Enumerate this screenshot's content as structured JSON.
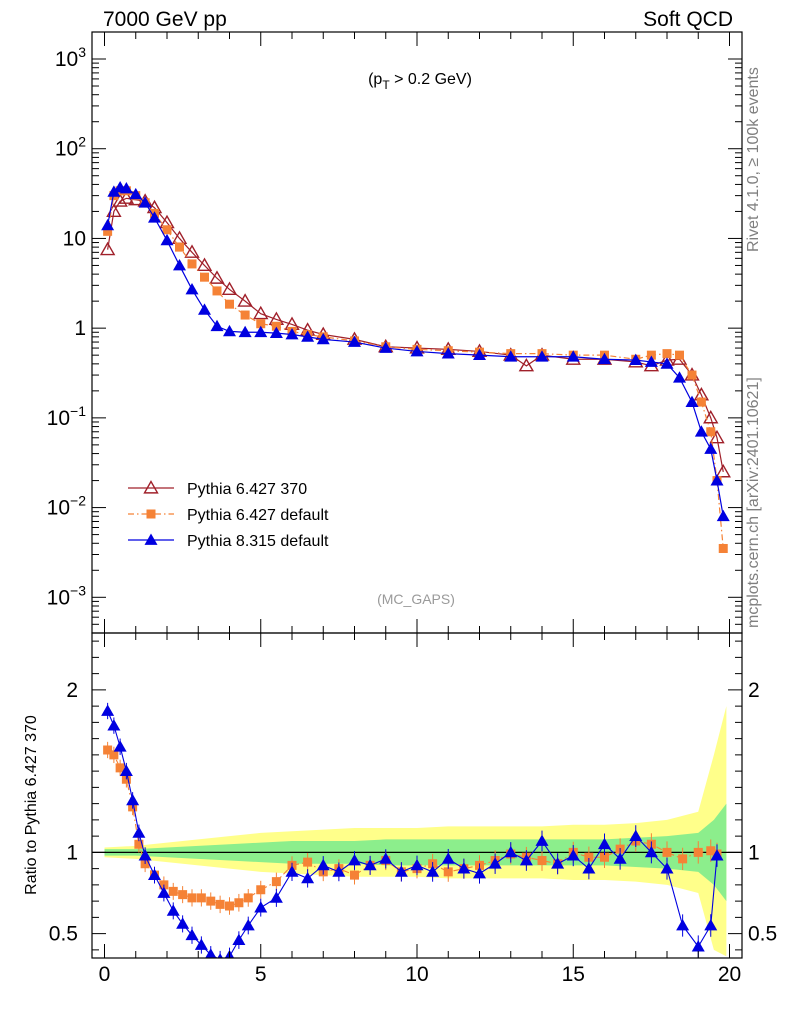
{
  "header": {
    "left": "7000 GeV pp",
    "right": "Soft QCD"
  },
  "side_labels": {
    "rivet": "Rivet 4.1.0, ≥ 100k events",
    "mcplots": "mcplots.cern.ch [arXiv:2401.10621]"
  },
  "chart_data": {
    "type": "line",
    "title": "(p_T > 0.2 GeV)",
    "watermark": "(MC_GAPS)",
    "xlabel": "",
    "ylabel_main": "",
    "ylabel_ratio": "Ratio to Pythia 6.427 370",
    "xlim": [
      -0.4,
      20.4
    ],
    "ylim_main": [
      0.0004,
      2000
    ],
    "yscale_main": "log",
    "ylim_ratio": [
      0.35,
      2.35
    ],
    "x_ticks": [
      0,
      5,
      10,
      15,
      20
    ],
    "y_ticks_main": [
      {
        "value": 0.001,
        "base": "10",
        "exp": "−3"
      },
      {
        "value": 0.01,
        "base": "10",
        "exp": "−2"
      },
      {
        "value": 0.1,
        "base": "10",
        "exp": "−1"
      },
      {
        "value": 1,
        "base": "1",
        "exp": ""
      },
      {
        "value": 10,
        "base": "10",
        "exp": ""
      },
      {
        "value": 100,
        "base": "10",
        "exp": "2"
      },
      {
        "value": 1000,
        "base": "10",
        "exp": "3"
      }
    ],
    "y_ticks_ratio": [
      {
        "value": 0.5,
        "label": "0.5"
      },
      {
        "value": 1,
        "label": "1"
      },
      {
        "value": 2,
        "label": "2"
      }
    ],
    "legend_position": "bottom-left",
    "series": [
      {
        "name": "Pythia 6.427 370",
        "color": "#a0202a",
        "marker": "open-triangle",
        "line": "solid",
        "x": [
          0.1,
          0.3,
          0.5,
          0.7,
          1.0,
          1.3,
          1.6,
          2.0,
          2.4,
          2.8,
          3.2,
          3.6,
          4.0,
          4.5,
          5.0,
          5.5,
          6.0,
          6.5,
          7.0,
          8.0,
          9.0,
          10.0,
          11.0,
          12.0,
          13.0,
          13.5,
          14.0,
          15.0,
          16.0,
          17.0,
          17.5,
          18.0,
          18.4,
          18.8,
          19.1,
          19.4,
          19.6,
          19.8
        ],
        "values": [
          7.5,
          20,
          26,
          28,
          27,
          26,
          22,
          15,
          10,
          7,
          5,
          3.6,
          2.7,
          2.0,
          1.45,
          1.25,
          1.1,
          0.95,
          0.85,
          0.75,
          0.62,
          0.6,
          0.58,
          0.55,
          0.5,
          0.38,
          0.5,
          0.45,
          0.45,
          0.42,
          0.38,
          0.44,
          0.45,
          0.3,
          0.18,
          0.1,
          0.06,
          0.025
        ]
      },
      {
        "name": "Pythia 6.427 default",
        "color": "#f58236",
        "marker": "square",
        "line": "dashdot",
        "x": [
          0.1,
          0.3,
          0.5,
          0.7,
          1.0,
          1.3,
          1.6,
          2.0,
          2.4,
          2.8,
          3.2,
          3.6,
          4.0,
          4.5,
          5.0,
          5.5,
          6.0,
          6.5,
          7.0,
          8.0,
          9.0,
          10.0,
          11.0,
          12.0,
          13.0,
          14.0,
          15.0,
          16.0,
          17.0,
          17.5,
          18.0,
          18.4,
          18.8,
          19.1,
          19.4,
          19.6,
          19.8
        ],
        "values": [
          12,
          30,
          34,
          34,
          30,
          25,
          19,
          12.5,
          8,
          5.2,
          3.7,
          2.6,
          1.85,
          1.4,
          1.12,
          1.05,
          0.92,
          0.85,
          0.8,
          0.72,
          0.62,
          0.58,
          0.56,
          0.54,
          0.52,
          0.52,
          0.5,
          0.5,
          0.45,
          0.5,
          0.52,
          0.5,
          0.3,
          0.15,
          0.07,
          0.02,
          0.0035
        ]
      },
      {
        "name": "Pythia 8.315 default",
        "color": "#0000e0",
        "marker": "triangle",
        "line": "solid",
        "x": [
          0.1,
          0.3,
          0.5,
          0.7,
          1.0,
          1.3,
          1.6,
          2.0,
          2.4,
          2.8,
          3.2,
          3.6,
          4.0,
          4.5,
          5.0,
          5.5,
          6.0,
          6.5,
          7.0,
          8.0,
          9.0,
          10.0,
          11.0,
          12.0,
          13.0,
          14.0,
          15.0,
          16.0,
          17.0,
          17.5,
          18.0,
          18.4,
          18.8,
          19.1,
          19.4,
          19.6,
          19.8
        ],
        "values": [
          14,
          33,
          37,
          36,
          31,
          25,
          17,
          9.5,
          5,
          2.7,
          1.6,
          1.05,
          0.92,
          0.9,
          0.9,
          0.88,
          0.85,
          0.8,
          0.75,
          0.7,
          0.6,
          0.55,
          0.52,
          0.5,
          0.48,
          0.48,
          0.48,
          0.45,
          0.44,
          0.42,
          0.4,
          0.28,
          0.15,
          0.07,
          0.045,
          0.02,
          0.008
        ]
      }
    ],
    "ratio_series": [
      {
        "name": "Pythia 6.427 default",
        "color": "#f58236",
        "marker": "square",
        "x": [
          0.1,
          0.3,
          0.5,
          0.7,
          0.9,
          1.1,
          1.3,
          1.6,
          1.9,
          2.2,
          2.5,
          2.8,
          3.1,
          3.4,
          3.7,
          4.0,
          4.3,
          4.6,
          5.0,
          5.5,
          6.0,
          6.5,
          7.0,
          7.5,
          8.0,
          8.5,
          9.0,
          9.5,
          10.0,
          10.5,
          11.0,
          11.5,
          12.0,
          12.5,
          13.0,
          13.5,
          14.0,
          14.5,
          15.0,
          15.5,
          16.0,
          16.5,
          17.0,
          17.5,
          18.0,
          18.5,
          19.0,
          19.4,
          19.6
        ],
        "values": [
          1.63,
          1.6,
          1.52,
          1.45,
          1.28,
          1.05,
          0.93,
          0.86,
          0.8,
          0.76,
          0.74,
          0.72,
          0.72,
          0.7,
          0.68,
          0.67,
          0.69,
          0.72,
          0.77,
          0.82,
          0.92,
          0.94,
          0.88,
          0.9,
          0.86,
          0.92,
          0.95,
          0.88,
          0.9,
          0.93,
          0.88,
          0.9,
          0.92,
          0.95,
          0.99,
          0.97,
          0.95,
          0.93,
          1.0,
          0.97,
          0.97,
          1.02,
          1.07,
          1.05,
          1.0,
          0.96,
          1.0,
          1.01,
          0.99
        ]
      },
      {
        "name": "Pythia 8.315 default",
        "color": "#0000e0",
        "marker": "triangle",
        "x": [
          0.1,
          0.3,
          0.5,
          0.7,
          0.9,
          1.1,
          1.3,
          1.6,
          1.9,
          2.2,
          2.5,
          2.8,
          3.1,
          3.4,
          3.7,
          4.0,
          4.3,
          4.6,
          5.0,
          5.5,
          6.0,
          6.5,
          7.0,
          7.5,
          8.0,
          8.5,
          9.0,
          9.5,
          10.0,
          10.5,
          11.0,
          11.5,
          12.0,
          12.5,
          13.0,
          13.5,
          14.0,
          14.5,
          15.0,
          15.5,
          16.0,
          16.5,
          17.0,
          17.5,
          18.0,
          18.5,
          19.0,
          19.4,
          19.6
        ],
        "values": [
          1.87,
          1.78,
          1.65,
          1.5,
          1.32,
          1.12,
          0.98,
          0.86,
          0.75,
          0.64,
          0.56,
          0.49,
          0.43,
          0.37,
          0.34,
          0.36,
          0.46,
          0.55,
          0.66,
          0.72,
          0.88,
          0.84,
          0.92,
          0.88,
          0.95,
          0.92,
          0.96,
          0.88,
          0.92,
          0.88,
          0.96,
          0.9,
          0.87,
          0.93,
          1.0,
          0.95,
          1.07,
          0.93,
          0.98,
          0.9,
          1.05,
          0.96,
          1.1,
          1.0,
          0.9,
          0.55,
          0.42,
          0.55,
          0.98
        ]
      }
    ],
    "ratio_band": {
      "x": [
        0,
        1,
        2,
        3,
        4,
        5,
        6,
        7,
        8,
        9,
        10,
        11,
        12,
        13,
        14,
        15,
        16,
        17,
        18,
        19,
        19.5,
        19.9
      ],
      "inner": [
        0.02,
        0.02,
        0.03,
        0.04,
        0.05,
        0.06,
        0.07,
        0.07,
        0.07,
        0.08,
        0.08,
        0.08,
        0.08,
        0.08,
        0.08,
        0.08,
        0.08,
        0.09,
        0.1,
        0.12,
        0.2,
        0.3
      ],
      "outer": [
        0.03,
        0.04,
        0.06,
        0.08,
        0.1,
        0.12,
        0.13,
        0.14,
        0.15,
        0.15,
        0.15,
        0.16,
        0.16,
        0.16,
        0.16,
        0.17,
        0.17,
        0.18,
        0.2,
        0.25,
        0.6,
        0.9
      ]
    }
  }
}
